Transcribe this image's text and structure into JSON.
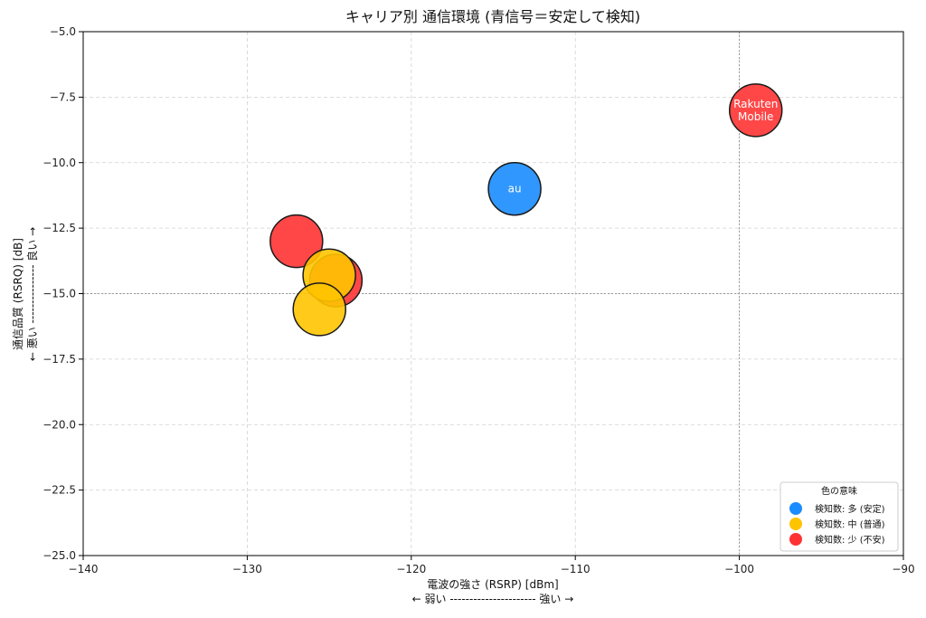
{
  "chart_data": {
    "type": "scatter",
    "title": "キャリア別 通信環境 (青信号＝安定して検知)",
    "xlabel": "電波の強さ (RSRP) [dBm]",
    "xlabel_hint": "← 弱い ---------------------- 強い →",
    "ylabel": "通信品質 (RSRQ) [dB]",
    "ylabel_hint": "← 悪い --------------- 良い →",
    "xlim": [
      -140,
      -90
    ],
    "ylim": [
      -25,
      -5
    ],
    "xticks": [
      -140,
      -130,
      -120,
      -110,
      -100,
      -90
    ],
    "xtick_labels": [
      "−140",
      "−130",
      "−120",
      "−110",
      "−100",
      "−90"
    ],
    "yticks": [
      -25,
      -22.5,
      -20,
      -17.5,
      -15,
      -12.5,
      -10,
      -7.5,
      -5
    ],
    "ytick_labels": [
      "−25.0",
      "−22.5",
      "−20.0",
      "−17.5",
      "−15.0",
      "−12.5",
      "−10.0",
      "−7.5",
      "−5.0"
    ],
    "grid": true,
    "reference_lines": {
      "x": -100,
      "y": -15
    },
    "points": [
      {
        "x": -124.6,
        "y": -14.5,
        "level": "low",
        "label": ""
      },
      {
        "x": -127.0,
        "y": -13.0,
        "level": "low",
        "label": ""
      },
      {
        "x": -125.0,
        "y": -14.3,
        "level": "medium",
        "label": ""
      },
      {
        "x": -125.6,
        "y": -15.6,
        "level": "medium",
        "label": ""
      },
      {
        "x": -113.7,
        "y": -11.0,
        "level": "high",
        "label": "au"
      },
      {
        "x": -99.0,
        "y": -8.0,
        "level": "low",
        "label": "Rakuten\nMobile"
      }
    ],
    "colors": {
      "high": "#1a8cff",
      "medium": "#ffc400",
      "low": "#ff3333"
    },
    "legend": {
      "title": "色の意味",
      "position": "bottom-right",
      "entries": [
        {
          "level": "high",
          "label": "検知数: 多 (安定)"
        },
        {
          "level": "medium",
          "label": "検知数: 中 (普通)"
        },
        {
          "level": "low",
          "label": "検知数: 少 (不安)"
        }
      ]
    }
  }
}
